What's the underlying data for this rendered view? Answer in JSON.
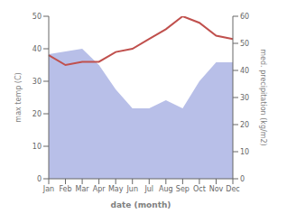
{
  "chart_data": {
    "type": "line",
    "categories": [
      "Jan",
      "Feb",
      "Mar",
      "Apr",
      "May",
      "Jun",
      "Jul",
      "Aug",
      "Sep",
      "Oct",
      "Nov",
      "Dec"
    ],
    "xlabel": "date (month)",
    "ylabel": "max temp (C)",
    "y2label": "med. precipitation (kg/m2)",
    "ylim": [
      0,
      50
    ],
    "yticks": [
      0,
      10,
      20,
      30,
      40,
      50
    ],
    "y2lim": [
      0,
      60
    ],
    "y2ticks": [
      0,
      10,
      20,
      30,
      40,
      50,
      60
    ],
    "grid": false,
    "series": [
      {
        "type": "area",
        "axis": "y2",
        "color": "#b8bfe8",
        "values": [
          46,
          47,
          48,
          42,
          33,
          26,
          26,
          29,
          26,
          36,
          43,
          43
        ]
      },
      {
        "type": "line",
        "color": "#c0504d",
        "values": [
          38,
          35,
          36,
          36,
          39,
          40,
          43,
          46,
          50,
          48,
          44,
          43
        ]
      }
    ]
  }
}
